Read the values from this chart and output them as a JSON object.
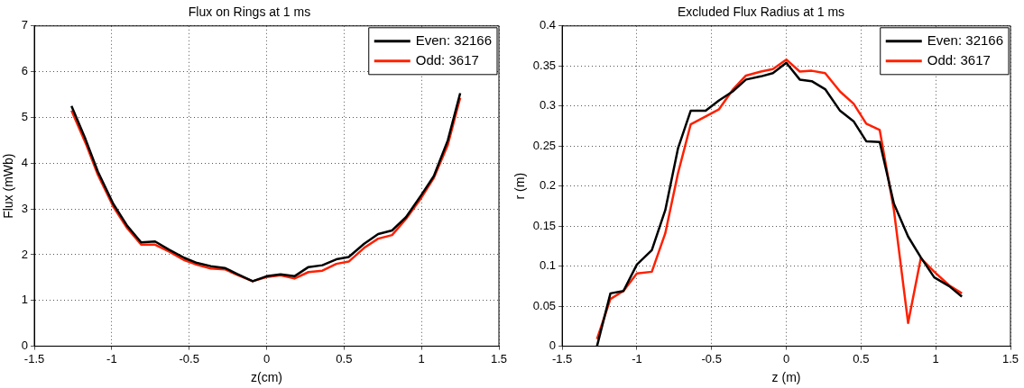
{
  "chart_data": [
    {
      "type": "line",
      "title": "Flux on Rings at 1 ms",
      "xlabel": "z(cm)",
      "ylabel": "Flux (mWb)",
      "xlim": [
        -1.5,
        1.5
      ],
      "xticks": [
        -1.5,
        -1,
        -0.5,
        0,
        0.5,
        1,
        1.5
      ],
      "ylim": [
        0,
        7
      ],
      "yticks": [
        0,
        1,
        2,
        3,
        4,
        5,
        6,
        7
      ],
      "grid": true,
      "legend": "top right",
      "marker": "none",
      "line_style": "solid",
      "x": [
        -1.26,
        -1.17,
        -1.09,
        -0.99,
        -0.9,
        -0.81,
        -0.72,
        -0.63,
        -0.53,
        -0.45,
        -0.36,
        -0.27,
        -0.19,
        -0.09,
        0,
        0.09,
        0.18,
        0.27,
        0.36,
        0.45,
        0.53,
        0.63,
        0.72,
        0.81,
        0.9,
        1.0,
        1.08,
        1.17,
        1.25
      ],
      "series": [
        {
          "name": "Even: 32166",
          "color": "#000000",
          "values": [
            5.25,
            4.53,
            3.82,
            3.11,
            2.63,
            2.27,
            2.29,
            2.11,
            1.93,
            1.82,
            1.75,
            1.71,
            1.58,
            1.42,
            1.53,
            1.57,
            1.53,
            1.73,
            1.77,
            1.9,
            1.95,
            2.24,
            2.45,
            2.53,
            2.82,
            3.31,
            3.72,
            4.5,
            5.53
          ]
        },
        {
          "name": "Odd: 3617",
          "color": "#ff2000",
          "values": [
            5.15,
            4.45,
            3.75,
            3.05,
            2.58,
            2.22,
            2.22,
            2.07,
            1.88,
            1.78,
            1.7,
            1.68,
            1.56,
            1.42,
            1.51,
            1.55,
            1.48,
            1.62,
            1.65,
            1.8,
            1.85,
            2.15,
            2.35,
            2.43,
            2.78,
            3.25,
            3.68,
            4.4,
            5.43
          ]
        }
      ]
    },
    {
      "type": "line",
      "title": "Excluded Flux Radius at 1 ms",
      "xlabel": "z (m)",
      "ylabel": "r (m)",
      "xlim": [
        -1.5,
        1.5
      ],
      "xticks": [
        -1.5,
        -1,
        -0.5,
        0,
        0.5,
        1,
        1.5
      ],
      "ylim": [
        0,
        0.4
      ],
      "yticks": [
        0,
        0.05,
        0.1,
        0.15,
        0.2,
        0.25,
        0.3,
        0.35,
        0.4
      ],
      "grid": true,
      "legend": "top right",
      "marker": "none",
      "line_style": "solid",
      "x": [
        -1.267,
        -1.177,
        -1.09,
        -1.0,
        -0.9,
        -0.81,
        -0.725,
        -0.64,
        -0.54,
        -0.45,
        -0.36,
        -0.27,
        -0.17,
        -0.09,
        0,
        0.09,
        0.17,
        0.26,
        0.36,
        0.45,
        0.535,
        0.625,
        0.72,
        0.815,
        0.9,
        0.99,
        1.09,
        1.175
      ],
      "series": [
        {
          "name": "Even: 32166",
          "color": "#000000",
          "values": [
            0,
            0.066,
            0.069,
            0.102,
            0.12,
            0.17,
            0.247,
            0.294,
            0.294,
            0.307,
            0.318,
            0.333,
            0.337,
            0.341,
            0.354,
            0.333,
            0.331,
            0.321,
            0.294,
            0.281,
            0.256,
            0.255,
            0.178,
            0.137,
            0.111,
            0.086,
            0.075,
            0.062
          ]
        },
        {
          "name": "Odd: 3617",
          "color": "#ff2000",
          "values": [
            0.009,
            0.059,
            0.069,
            0.091,
            0.093,
            0.141,
            0.216,
            0.277,
            0.287,
            0.296,
            0.32,
            0.338,
            0.343,
            0.346,
            0.358,
            0.343,
            0.344,
            0.341,
            0.318,
            0.303,
            0.278,
            0.27,
            0.17,
            0.029,
            0.11,
            0.093,
            0.076,
            0.066
          ]
        }
      ]
    }
  ]
}
